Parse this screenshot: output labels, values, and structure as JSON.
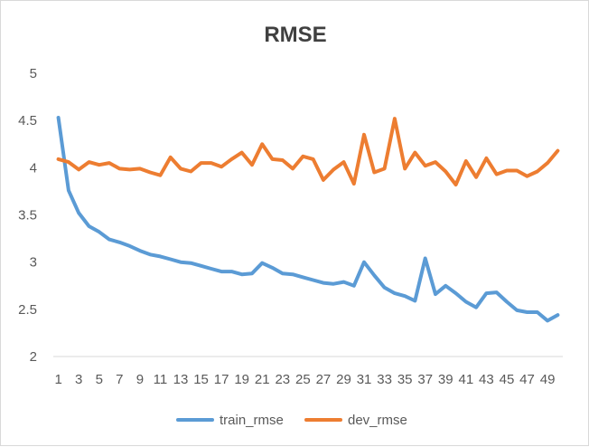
{
  "chart_data": {
    "type": "line",
    "title": "RMSE",
    "xlabel": "",
    "ylabel": "",
    "x": [
      1,
      2,
      3,
      4,
      5,
      6,
      7,
      8,
      9,
      10,
      11,
      12,
      13,
      14,
      15,
      16,
      17,
      18,
      19,
      20,
      21,
      22,
      23,
      24,
      25,
      26,
      27,
      28,
      29,
      30,
      31,
      32,
      33,
      34,
      35,
      36,
      37,
      38,
      39,
      40,
      41,
      42,
      43,
      44,
      45,
      46,
      47,
      48,
      49,
      50
    ],
    "x_tick_labels": [
      "1",
      "3",
      "5",
      "7",
      "9",
      "11",
      "13",
      "15",
      "17",
      "19",
      "21",
      "23",
      "25",
      "27",
      "29",
      "31",
      "33",
      "35",
      "37",
      "39",
      "41",
      "43",
      "45",
      "47",
      "49"
    ],
    "ylim": [
      2,
      5
    ],
    "y_ticks": [
      "2",
      "2.5",
      "3",
      "3.5",
      "4",
      "4.5",
      "5"
    ],
    "grid": false,
    "legend_position": "bottom",
    "series": [
      {
        "name": "train_rmse",
        "color": "#5B9BD5",
        "values": [
          4.53,
          3.76,
          3.52,
          3.38,
          3.32,
          3.24,
          3.21,
          3.17,
          3.12,
          3.08,
          3.06,
          3.03,
          3.0,
          2.99,
          2.96,
          2.93,
          2.9,
          2.9,
          2.87,
          2.88,
          2.99,
          2.94,
          2.88,
          2.87,
          2.84,
          2.81,
          2.78,
          2.77,
          2.79,
          2.75,
          3.0,
          2.86,
          2.73,
          2.67,
          2.64,
          2.59,
          3.04,
          2.66,
          2.75,
          2.67,
          2.58,
          2.52,
          2.67,
          2.68,
          2.58,
          2.49,
          2.47,
          2.47,
          2.38,
          2.44
        ]
      },
      {
        "name": "dev_rmse",
        "color": "#ED7D31",
        "values": [
          4.09,
          4.06,
          3.98,
          4.06,
          4.03,
          4.05,
          3.99,
          3.98,
          3.99,
          3.95,
          3.92,
          4.11,
          3.99,
          3.96,
          4.05,
          4.05,
          4.01,
          4.09,
          4.16,
          4.03,
          4.25,
          4.09,
          4.08,
          3.99,
          4.12,
          4.09,
          3.87,
          3.98,
          4.06,
          3.83,
          4.35,
          3.95,
          3.99,
          4.52,
          3.99,
          4.16,
          4.02,
          4.06,
          3.96,
          3.82,
          4.07,
          3.9,
          4.1,
          3.93,
          3.97,
          3.97,
          3.91,
          3.96,
          4.05,
          4.18
        ]
      }
    ]
  }
}
